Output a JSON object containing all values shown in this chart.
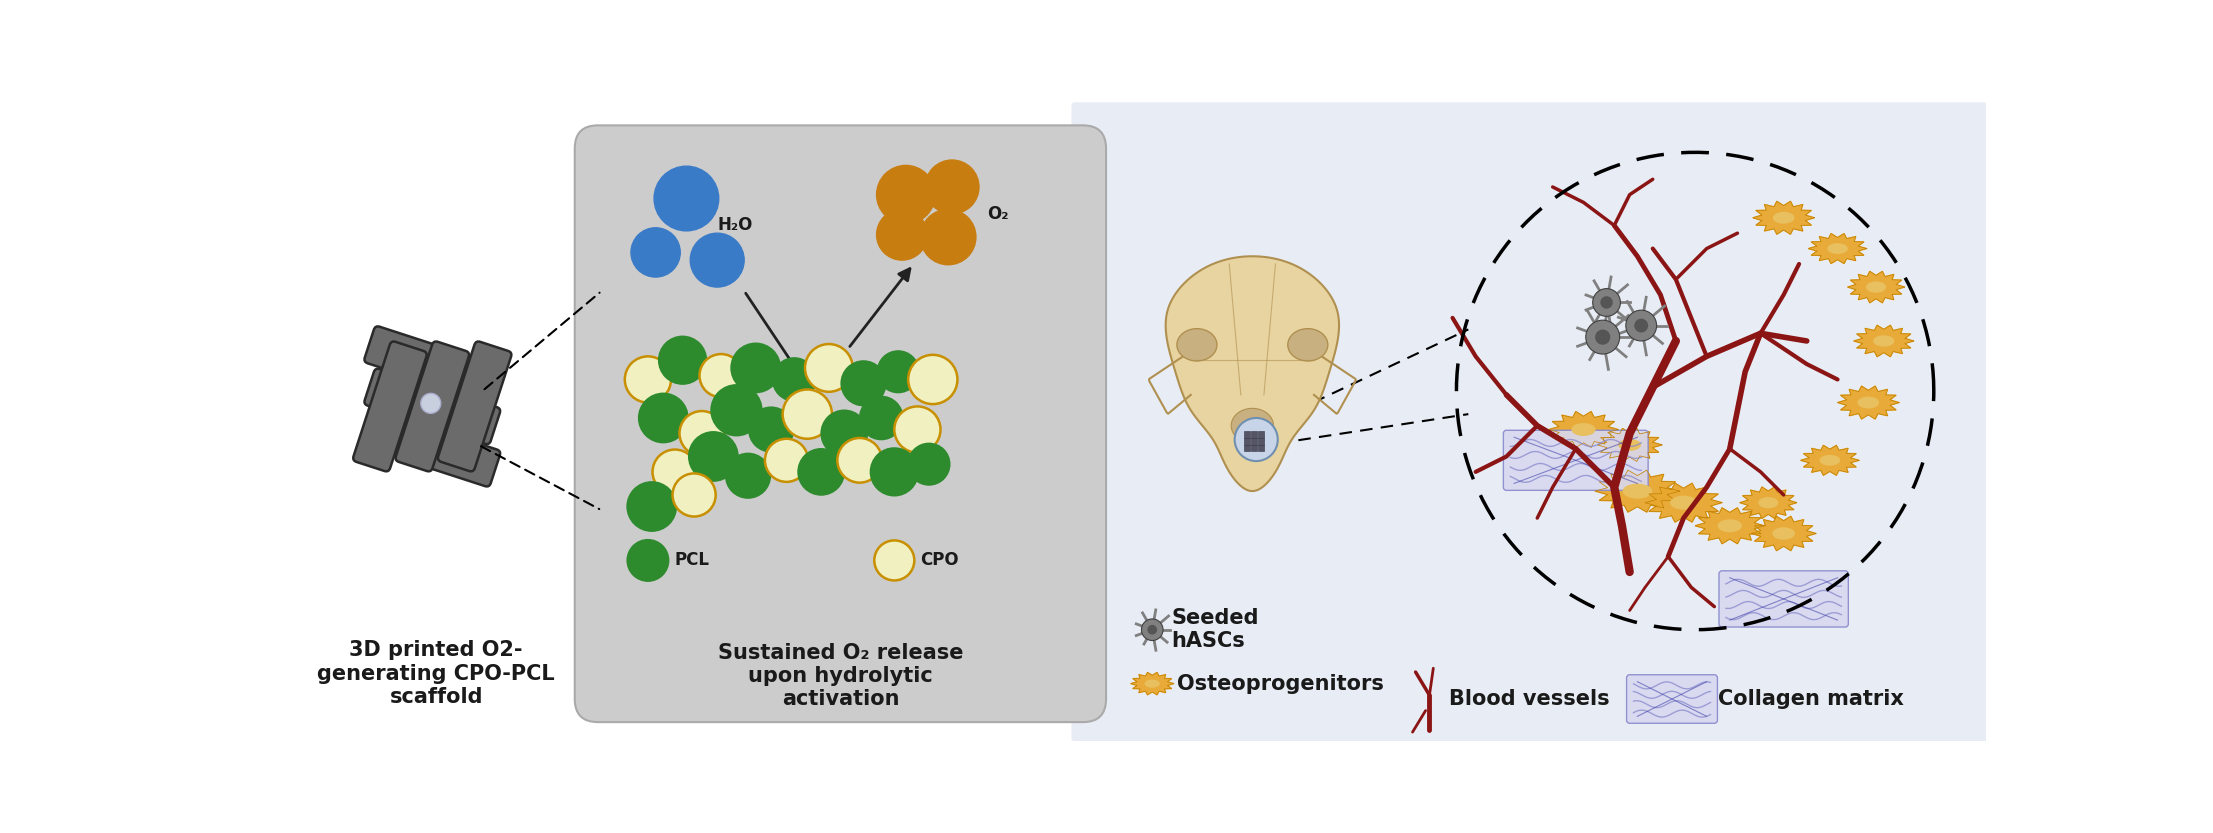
{
  "fig_width": 22.13,
  "fig_height": 8.33,
  "bg_color": "#ffffff",
  "right_bg_color": "#e8edf5",
  "panel_bg_color": "#cccccc",
  "scaffold_color": "#6b6b6b",
  "scaffold_edge": "#2a2a2a",
  "scaffold_highlight": "#c8d0e0",
  "water_color": "#3a7bc8",
  "o2_color": "#c87d10",
  "pcl_color": "#2d8b2d",
  "cpo_color": "#f0f0c0",
  "cpo_border": "#c89000",
  "blood_vessel_color": "#8b1515",
  "osteoprogenitor_color": "#e8a830",
  "osteoprogenitor_center": "#e8c060",
  "hascs_color": "#808080",
  "collagen_line": "#8888cc",
  "collagen_dot": "#4444aa",
  "collagen_bg": "#d8d8f0",
  "bone_color": "#e8d4a0",
  "bone_detail": "#c8b080",
  "bone_edge": "#b09050",
  "text_color": "#1a1a1a",
  "label_fontsize": 15,
  "title_fontsize": 15,
  "section1_label": "3D printed O2-\ngenerating CPO-PCL\nscaffold",
  "section2_label": "Sustained O₂ release\nupon hydrolytic\nactivation",
  "water_label": "H₂O",
  "o2_label": "O₂",
  "pcl_label": "PCL",
  "cpo_label": "CPO",
  "hascs_label": "Seeded\nhASCs",
  "osteo_label": "Osteoprogenitors",
  "blood_label": "Blood vessels",
  "collagen_label": "Collagen matrix"
}
